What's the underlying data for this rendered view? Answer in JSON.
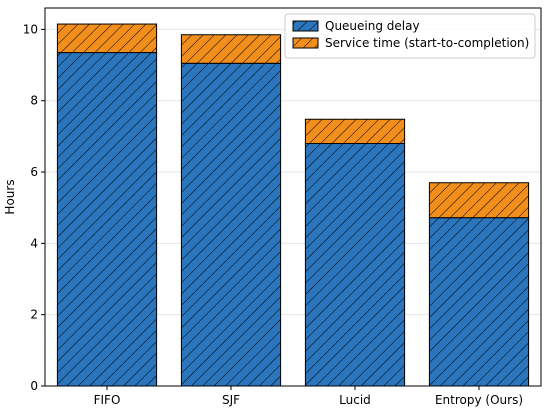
{
  "chart_data": {
    "type": "bar",
    "stacked": true,
    "categories": [
      "FIFO",
      "SJF",
      "Lucid",
      "Entropy (Ours)"
    ],
    "series": [
      {
        "name": "Queueing delay",
        "values": [
          9.35,
          9.05,
          6.8,
          4.72
        ],
        "color": "#2a75bb",
        "hatch": "diagonal"
      },
      {
        "name": "Service time (start-to-completion)",
        "values": [
          0.8,
          0.8,
          0.68,
          0.98
        ],
        "color": "#f28e1c",
        "hatch": "diagonal"
      }
    ],
    "title": "",
    "xlabel": "",
    "ylabel": "Hours",
    "ylim": [
      0,
      10.6
    ],
    "yticks": [
      0,
      2,
      4,
      6,
      8,
      10
    ],
    "grid": "y",
    "legend_position": "top-right"
  }
}
